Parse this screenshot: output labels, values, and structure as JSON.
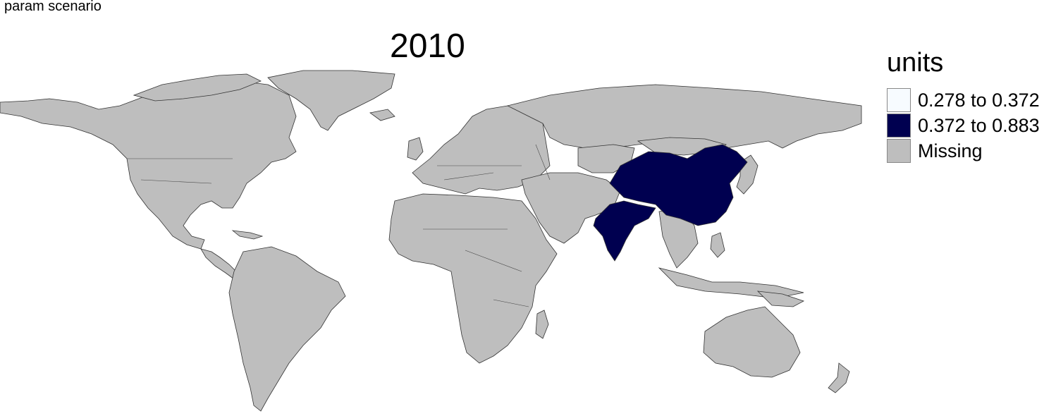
{
  "corner_label": "param scenario",
  "title": "2010",
  "legend": {
    "title": "units",
    "items": [
      {
        "label": "0.278 to 0.372",
        "color": "#f7fbff"
      },
      {
        "label": "0.372 to 0.883",
        "color": "#000050"
      },
      {
        "label": "Missing",
        "color": "#bebebe"
      }
    ]
  },
  "map": {
    "projection": "world choropleth",
    "regions_with_data": [
      {
        "name": "China",
        "bin": "0.372 to 0.883"
      },
      {
        "name": "India",
        "bin": "0.372 to 0.883"
      }
    ],
    "other_regions": "Missing"
  }
}
